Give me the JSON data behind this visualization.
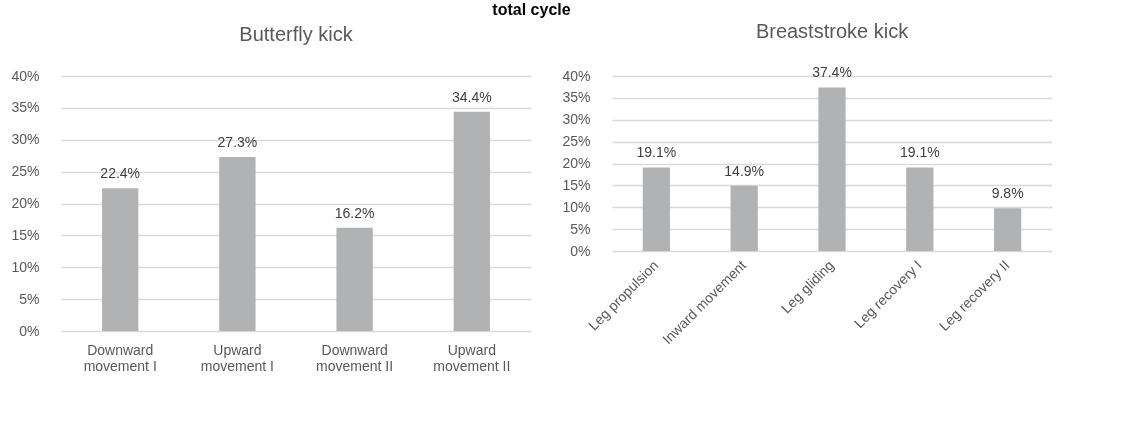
{
  "chart_data": [
    {
      "type": "bar",
      "title": "Butterfly kick",
      "annotations": [
        "total cycle"
      ],
      "categories": [
        "Downward movement I",
        "Upward movement I",
        "Downward movement II",
        "Upward movement II"
      ],
      "values": [
        22.4,
        27.3,
        16.2,
        34.4
      ],
      "value_labels": [
        "22.4%",
        "27.3%",
        "16.2%",
        "34.4%"
      ],
      "color": "#b1b2b4",
      "ylim": [
        0,
        40
      ],
      "yticks": [
        {
          "value": 0,
          "label": "0%"
        },
        {
          "value": 5,
          "label": "5%"
        },
        {
          "value": 10,
          "label": "10%"
        },
        {
          "value": 15,
          "label": "15%"
        },
        {
          "value": 20,
          "label": "20%"
        },
        {
          "value": 25,
          "label": "25%"
        },
        {
          "value": 30,
          "label": "30%"
        },
        {
          "value": 35,
          "label": "35%"
        },
        {
          "value": 40,
          "label": "40%"
        }
      ],
      "grid": "y"
    },
    {
      "type": "bar",
      "title": "Breaststroke kick",
      "categories": [
        "Leg propulsion",
        "Inward movement",
        "Leg gliding",
        "Leg recovery I",
        "Leg recovery II"
      ],
      "values": [
        19.1,
        14.9,
        37.4,
        19.1,
        9.8
      ],
      "value_labels": [
        "19.1%",
        "14.9%",
        "37.4%",
        "19.1%",
        "9.8%"
      ],
      "color": "#b1b2b4",
      "ylim": [
        0,
        40
      ],
      "yticks": [
        {
          "value": 0,
          "label": "0%"
        },
        {
          "value": 5,
          "label": "5%"
        },
        {
          "value": 10,
          "label": "10%"
        },
        {
          "value": 15,
          "label": "15%"
        },
        {
          "value": 20,
          "label": "20%"
        },
        {
          "value": 25,
          "label": "25%"
        },
        {
          "value": 30,
          "label": "30%"
        },
        {
          "value": 35,
          "label": "35%"
        },
        {
          "value": 40,
          "label": "40%"
        }
      ],
      "grid": "y"
    }
  ]
}
